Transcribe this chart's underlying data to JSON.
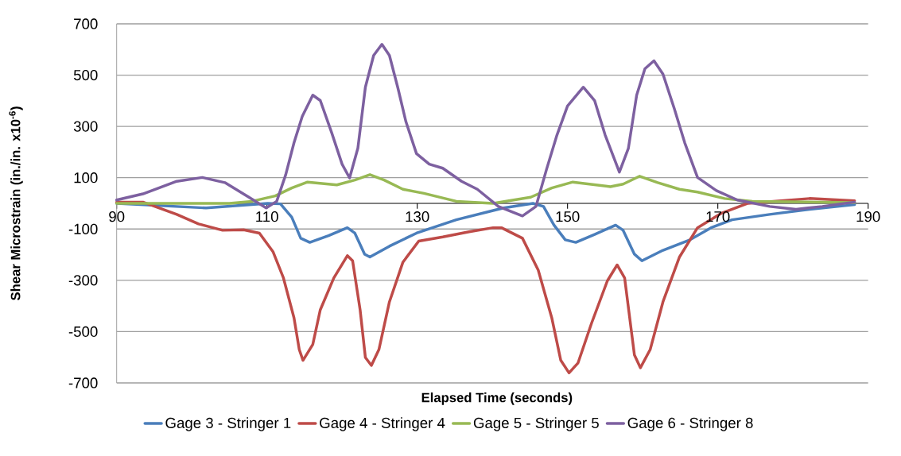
{
  "chart_data": {
    "type": "line",
    "xlabel": "Elapsed Time (seconds)",
    "ylabel": "Shear Microstrain (in./in. x10$^{-6}$)",
    "xlim": [
      90,
      190
    ],
    "xticks": [
      90,
      110,
      130,
      150,
      170,
      190
    ],
    "ylim": [
      -700,
      700
    ],
    "yticks": [
      -700,
      -500,
      -300,
      -100,
      100,
      300,
      500,
      700
    ],
    "grid": "y",
    "legend": "bottom",
    "marker": "none",
    "line_style": "solid",
    "series": [
      {
        "name": "Gage 3 - Stringer 1",
        "color": "#4a7ebb",
        "x": [
          90,
          101.9,
          110.1,
          111.8,
          113.3,
          114.5,
          115.7,
          118.2,
          120.7,
          121.7,
          123.0,
          123.7,
          126.3,
          129.9,
          135.2,
          140.1,
          141.5,
          145.4,
          146.8,
          148.2,
          149.7,
          151.1,
          153.6,
          156.4,
          157.4,
          158.9,
          159.9,
          162.7,
          166.3,
          169.1,
          171.9,
          176.9,
          182.2,
          188.2
        ],
        "values": [
          0,
          -18,
          0,
          -2,
          -54,
          -136,
          -152,
          -126,
          -95,
          -116,
          -198,
          -209,
          -167,
          -116,
          -64,
          -28,
          -18,
          0,
          -12,
          -85,
          -142,
          -152,
          -121,
          -85,
          -105,
          -198,
          -224,
          -183,
          -142,
          -95,
          -64,
          -43,
          -23,
          -5
        ]
      },
      {
        "name": "Gage 4 - Stringer 4",
        "color": "#be4b48",
        "x": [
          90,
          93.5,
          98,
          100.9,
          104.1,
          106.9,
          109.0,
          110.8,
          112.2,
          113.6,
          114.3,
          114.8,
          116.1,
          117.1,
          118.9,
          120.7,
          121.4,
          122.4,
          123.1,
          123.9,
          124.9,
          126.3,
          128.1,
          130.2,
          133.4,
          136.9,
          140.1,
          141.2,
          144.0,
          146.1,
          147.9,
          149.1,
          150.2,
          151.4,
          153.2,
          155.3,
          156.6,
          157.6,
          158.9,
          159.7,
          161.0,
          162.7,
          164.9,
          167.3,
          170.5,
          174.0,
          182.2,
          188.2
        ],
        "values": [
          5,
          5,
          -43,
          -80,
          -105,
          -103,
          -116,
          -188,
          -291,
          -446,
          -570,
          -612,
          -550,
          -415,
          -291,
          -204,
          -224,
          -415,
          -601,
          -632,
          -570,
          -384,
          -229,
          -147,
          -131,
          -111,
          -95,
          -95,
          -136,
          -260,
          -446,
          -612,
          -661,
          -622,
          -467,
          -302,
          -240,
          -291,
          -591,
          -641,
          -570,
          -384,
          -209,
          -95,
          -38,
          0,
          19,
          10
        ]
      },
      {
        "name": "Gage 5 - Stringer 5",
        "color": "#98b954",
        "x": [
          90,
          105,
          108,
          111.1,
          113.3,
          115.4,
          119.3,
          121.7,
          123.7,
          125.6,
          128.1,
          130.9,
          135.2,
          140.1,
          145.1,
          147.9,
          150.7,
          155.7,
          157.4,
          159.6,
          162.0,
          164.9,
          167.3,
          170.9,
          174.6,
          188.2
        ],
        "values": [
          0,
          0,
          8,
          29,
          60,
          83,
          72,
          91,
          112,
          91,
          55,
          39,
          8,
          0,
          24,
          60,
          83,
          65,
          75,
          106,
          81,
          55,
          44,
          19,
          8,
          3
        ]
      },
      {
        "name": "Gage 6 - Stringer 8",
        "color": "#7d60a0",
        "x": [
          90,
          93.5,
          98,
          101.4,
          104.4,
          107.6,
          109.9,
          111.3,
          112.5,
          113.6,
          114.7,
          116.1,
          117.1,
          118.6,
          120.0,
          121.0,
          122.1,
          123.1,
          124.2,
          125.3,
          126.3,
          127.4,
          128.5,
          129.9,
          131.6,
          133.4,
          135.9,
          138.0,
          140.8,
          144.0,
          145.8,
          147.2,
          148.6,
          150.0,
          152.1,
          153.6,
          155.0,
          156.9,
          158.1,
          159.2,
          160.3,
          161.5,
          162.7,
          164.2,
          165.6,
          167.3,
          169.8,
          172.6,
          176.9,
          180.4,
          183.9,
          188.2
        ],
        "values": [
          13,
          37,
          86,
          101,
          81,
          24,
          -18,
          8,
          112,
          236,
          339,
          422,
          401,
          277,
          153,
          99,
          215,
          453,
          577,
          620,
          577,
          453,
          318,
          194,
          153,
          137,
          86,
          55,
          -12,
          -49,
          -12,
          132,
          267,
          380,
          453,
          401,
          267,
          122,
          215,
          422,
          525,
          556,
          504,
          370,
          236,
          101,
          50,
          13,
          -12,
          -23,
          -12,
          5
        ]
      }
    ]
  }
}
